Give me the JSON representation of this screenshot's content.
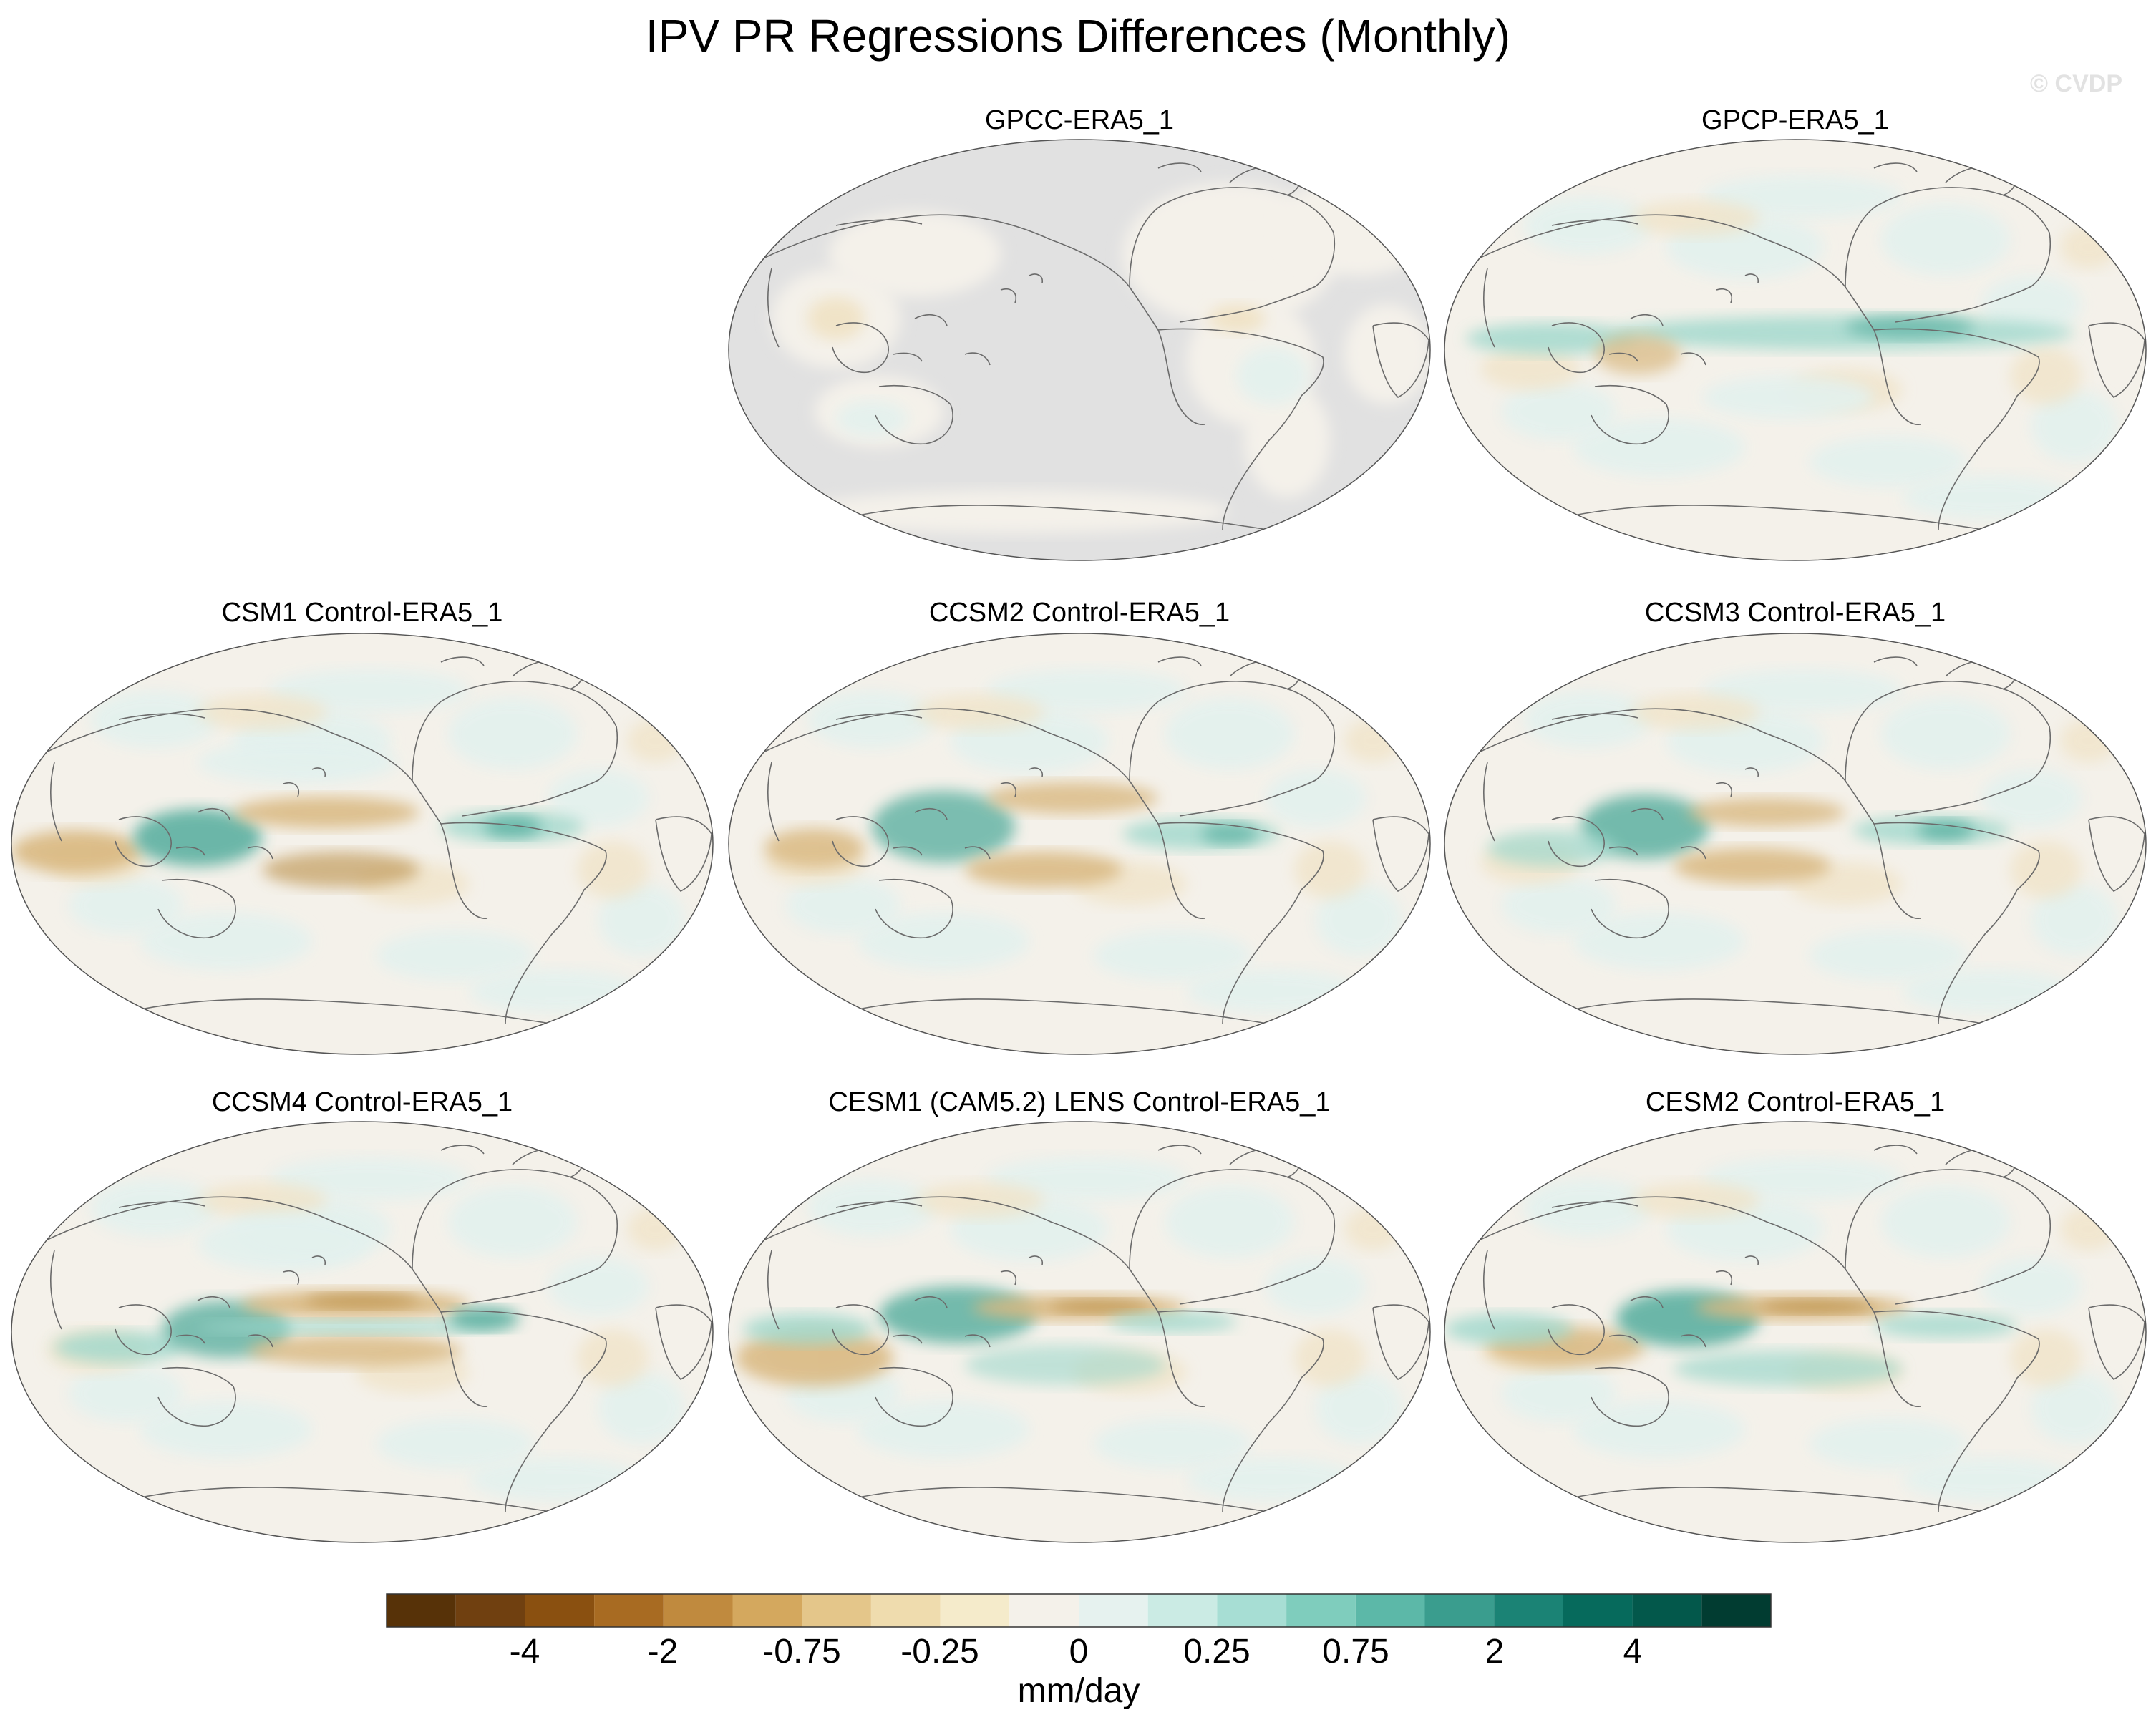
{
  "figure": {
    "title": "IPV PR Regressions Differences (Monthly)",
    "watermark": "© CVDP"
  },
  "panels": [
    {
      "title": "GPCC-ERA5_1",
      "land_only": true
    },
    {
      "title": "GPCP-ERA5_1",
      "land_only": false
    },
    {
      "title": "CSM1 Control-ERA5_1",
      "land_only": false
    },
    {
      "title": "CCSM2 Control-ERA5_1",
      "land_only": false
    },
    {
      "title": "CCSM3 Control-ERA5_1",
      "land_only": false
    },
    {
      "title": "CCSM4 Control-ERA5_1",
      "land_only": false
    },
    {
      "title": "CESM1 (CAM5.2) LENS Control-ERA5_1",
      "land_only": false
    },
    {
      "title": "CESM2 Control-ERA5_1",
      "land_only": false
    }
  ],
  "colorbar": {
    "units": "mm/day",
    "tick_labels": [
      "-4",
      "-2",
      "-0.75",
      "-0.25",
      "0",
      "0.25",
      "0.75",
      "2",
      "4"
    ],
    "colors": [
      "#573208",
      "#704010",
      "#8a5010",
      "#a86b22",
      "#c08a3e",
      "#d4a85e",
      "#e4c68a",
      "#efdcae",
      "#f5ebcb",
      "#f4f1ea",
      "#e6f2ef",
      "#cbebe4",
      "#a7ded4",
      "#7fcdbd",
      "#5cb8a8",
      "#3a9d8e",
      "#1b8375",
      "#066a5c",
      "#03584b",
      "#013c31"
    ]
  },
  "colors": {
    "ocean_bg": "#f4f1ea",
    "masked_bg": "#e1e1e1",
    "coast": "#6b6b6b",
    "brown": "#d9b880",
    "brown_dark": "#b98d44",
    "teal": "#9fd8cc",
    "teal_dark": "#4aa898",
    "light_teal": "#e3f1ee"
  }
}
